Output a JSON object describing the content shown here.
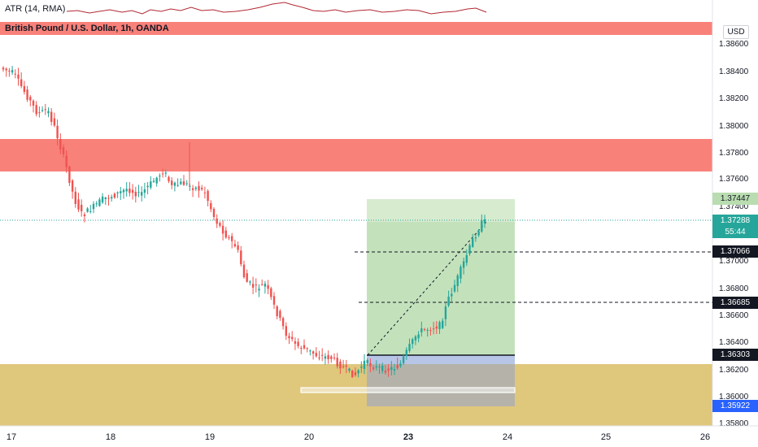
{
  "header": {
    "indicator": "ATR (14, RMA)",
    "symbol": "British Pound / U.S. Dollar, 1h, OANDA"
  },
  "price_axis": {
    "currency": "USD",
    "ticks": [
      "1.38600",
      "1.38400",
      "1.38200",
      "1.38000",
      "1.37800",
      "1.37600",
      "1.37400",
      "1.37000",
      "1.36800",
      "1.36600",
      "1.36400",
      "1.36200",
      "1.36000",
      "1.35800"
    ]
  },
  "price_markers": {
    "target": "1.37447",
    "current": "1.37288",
    "countdown": "55:44",
    "level1": "1.37066",
    "level2": "1.36685",
    "entry": "1.36303",
    "stop": "1.35922"
  },
  "time_axis": {
    "labels": [
      "17",
      "18",
      "19",
      "20",
      "23",
      "24",
      "25",
      "26"
    ],
    "bold": "23"
  },
  "colors": {
    "up": "#26a69a",
    "down": "#ef5350",
    "zone_red": "#f8817a",
    "zone_gold": "#dfc77c",
    "profit": "#c3e2b5",
    "loss": "#b9bec9"
  },
  "icons": [
    "atr-sparkline-icon",
    "dashed-projection-line-icon"
  ]
}
